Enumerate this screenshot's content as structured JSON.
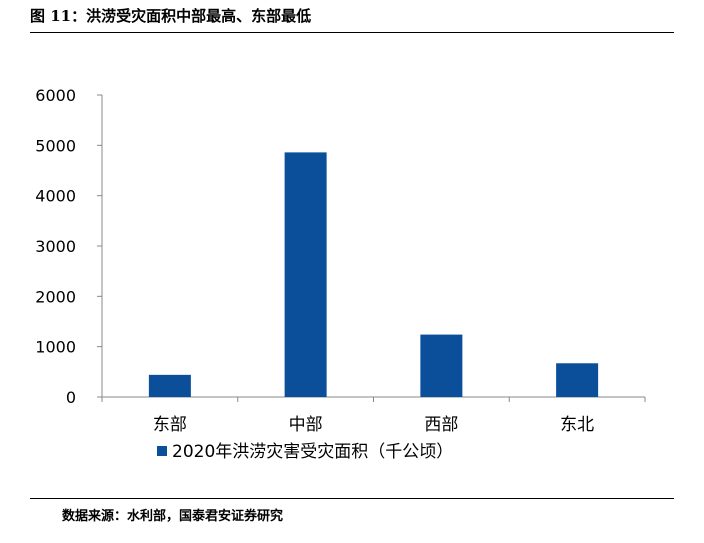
{
  "figure": {
    "title": "图 11：洪涝受灾面积中部最高、东部最低",
    "source": "数据来源：水利部，国泰君安证券研究"
  },
  "chart_data": {
    "type": "bar",
    "categories": [
      "东部",
      "中部",
      "西部",
      "东北"
    ],
    "series": [
      {
        "name": "2020年洪涝灾害受灾面积（千公顷）",
        "values": [
          440,
          4860,
          1240,
          670
        ]
      }
    ],
    "yticks": [
      "0",
      "1000",
      "2000",
      "3000",
      "4000",
      "5000",
      "6000"
    ],
    "ylim": [
      0,
      6000
    ],
    "grid": false,
    "legend": "bottom",
    "colors": {
      "bar": "#0b4f9a",
      "axis": "#888888"
    }
  }
}
